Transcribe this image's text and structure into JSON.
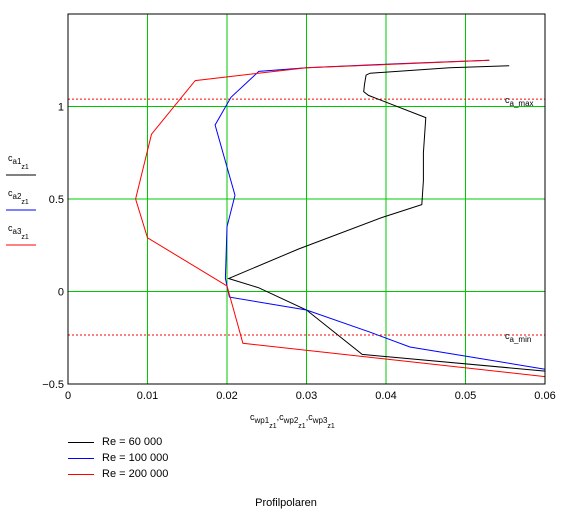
{
  "chart_data": {
    "type": "line",
    "title": "",
    "caption": "Profilpolaren",
    "xlim": [
      0,
      0.06
    ],
    "ylim": [
      -0.5,
      1.5
    ],
    "x_ticks": [
      0,
      0.01,
      0.02,
      0.03,
      0.04,
      0.05,
      0.06
    ],
    "x_tick_labels": [
      "0",
      "0.01",
      "0.02",
      "0.03",
      "0.04",
      "0.05",
      "0.06"
    ],
    "y_ticks": [
      -0.5,
      0,
      0.5,
      1
    ],
    "y_tick_labels": [
      "−0.5",
      "0",
      "0.5",
      "1"
    ],
    "grid": true,
    "grid_color": "#00c800",
    "xlabel": {
      "parts": [
        {
          "base": "c",
          "sub": "wp1",
          "subsub": "z1"
        },
        {
          "base": "c",
          "sub": "wp2",
          "subsub": "z1"
        },
        {
          "base": "c",
          "sub": "wp3",
          "subsub": "z1"
        }
      ]
    },
    "ylabel_entries": [
      {
        "base": "c",
        "sub": "a1",
        "subsub": "z1",
        "color": "#000000"
      },
      {
        "base": "c",
        "sub": "a2",
        "subsub": "z1",
        "color": "#0000ff"
      },
      {
        "base": "c",
        "sub": "a3",
        "subsub": "z1",
        "color": "#ff0000"
      }
    ],
    "reference_lines": [
      {
        "label": "c_a_max",
        "y": 1.04,
        "color": "#ff0000"
      },
      {
        "label": "c_a_min",
        "y": -0.235,
        "color": "#ff0000"
      }
    ],
    "series": [
      {
        "name": "Re = 60 000",
        "color": "#000000",
        "points": [
          [
            0.0555,
            1.22
          ],
          [
            0.048,
            1.21
          ],
          [
            0.038,
            1.18
          ],
          [
            0.0375,
            1.17
          ],
          [
            0.0373,
            1.12
          ],
          [
            0.0372,
            1.08
          ],
          [
            0.0378,
            1.06
          ],
          [
            0.045,
            0.94
          ],
          [
            0.0447,
            0.75
          ],
          [
            0.0447,
            0.6
          ],
          [
            0.0445,
            0.47
          ],
          [
            0.0395,
            0.4
          ],
          [
            0.029,
            0.23
          ],
          [
            0.0202,
            0.07
          ],
          [
            0.024,
            0.02
          ],
          [
            0.03,
            -0.1
          ],
          [
            0.037,
            -0.34
          ],
          [
            0.06,
            -0.43
          ]
        ]
      },
      {
        "name": "Re = 100 000",
        "color": "#0000ff",
        "points": [
          [
            0.053,
            1.25
          ],
          [
            0.041,
            1.23
          ],
          [
            0.03,
            1.21
          ],
          [
            0.024,
            1.19
          ],
          [
            0.0205,
            1.05
          ],
          [
            0.0185,
            0.9
          ],
          [
            0.021,
            0.52
          ],
          [
            0.02,
            0.35
          ],
          [
            0.0198,
            0.07
          ],
          [
            0.0203,
            -0.03
          ],
          [
            0.03,
            -0.1
          ],
          [
            0.038,
            -0.22
          ],
          [
            0.043,
            -0.3
          ],
          [
            0.06,
            -0.42
          ]
        ]
      },
      {
        "name": "Re = 200 000",
        "color": "#ff0000",
        "points": [
          [
            0.053,
            1.25
          ],
          [
            0.042,
            1.23
          ],
          [
            0.03,
            1.21
          ],
          [
            0.016,
            1.14
          ],
          [
            0.0105,
            0.85
          ],
          [
            0.0085,
            0.5
          ],
          [
            0.01,
            0.29
          ],
          [
            0.02,
            0.03
          ],
          [
            0.022,
            -0.28
          ],
          [
            0.06,
            -0.46
          ]
        ]
      }
    ],
    "legend": {
      "entries": [
        {
          "label": "Re = 60 000",
          "color": "#000000"
        },
        {
          "label": "Re = 100 000",
          "color": "#0000ff"
        },
        {
          "label": "Re = 200 000",
          "color": "#ff0000"
        }
      ]
    }
  }
}
